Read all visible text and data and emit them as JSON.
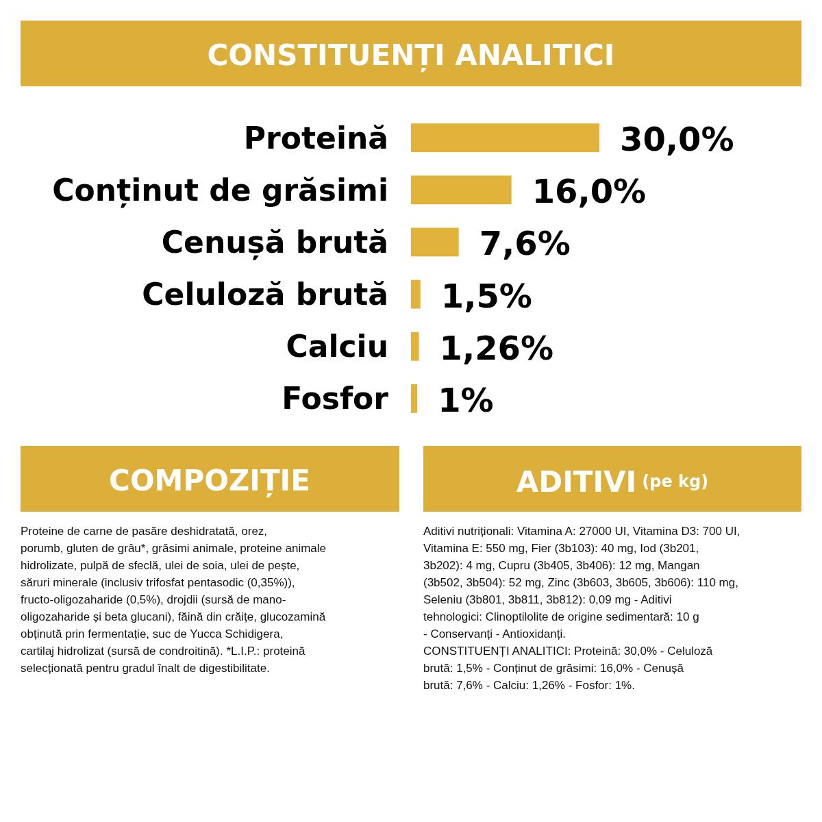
{
  "chart_data": {
    "type": "bar",
    "orientation": "horizontal",
    "title": "CONSTITUENȚI ANALITICI",
    "categories": [
      "Proteină",
      "Conținut de grăsimi",
      "Cenușă brută",
      "Celuloză brută",
      "Calciu",
      "Fosfor"
    ],
    "values": [
      30.0,
      16.0,
      7.6,
      1.5,
      1.26,
      1
    ],
    "value_labels": [
      "30,0%",
      "16,0%",
      "7,6%",
      "1,5%",
      "1,26%",
      "1%"
    ],
    "color": "#e2b33b",
    "annotations": [
      "COMPOZIȚIE",
      "Proteine de carne de pasăre deshidratată, orez,\nporumb, gluten de grâu*, grăsimi animale, proteine animale\nhidrolizate, pulpă de sfeclă, ulei de soia, ulei de pește,\nsăruri minerale (inclusiv trifosfat pentasodic (0,35%)),\nfructo-oligozaharide (0,5%), drojdii (sursă de mano-\noligozaharide și beta glucani), făină din crăițe, glucozamină\nobținută prin fermentație, suc de Yucca Schidigera,\ncartilaj hidrolizat (sursă de condroitină). *L.I.P.: proteină\nselecționată pentru gradul înalt de digestibilitate.",
      "ADITIVI",
      "(pe kg)",
      "Aditivi nutriționali: Vitamina A: 27000 UI, Vitamina D3: 700 UI,\nVitamina E: 550 mg, Fier (3b103): 40 mg, Iod (3b201,\n3b202): 4 mg, Cupru (3b405, 3b406): 12 mg, Mangan\n(3b502, 3b504): 52 mg, Zinc (3b603, 3b605, 3b606): 110 mg,\nSeleniu (3b801, 3b811, 3b812): 0,09 mg - Aditivi\ntehnologici: Clinoptilolite de origine sedimentară: 10 g\n- Conservanți - Antioxidanți.\nCONSTITUENȚI ANALITICI: Proteină: 30,0% - Celuloză\nbrută: 1,5% - Conținut de grăsimi: 16,0% - Cenușă\nbrută: 7,6% - Calciu: 1,26% - Fosfor: 1%."
    ]
  }
}
